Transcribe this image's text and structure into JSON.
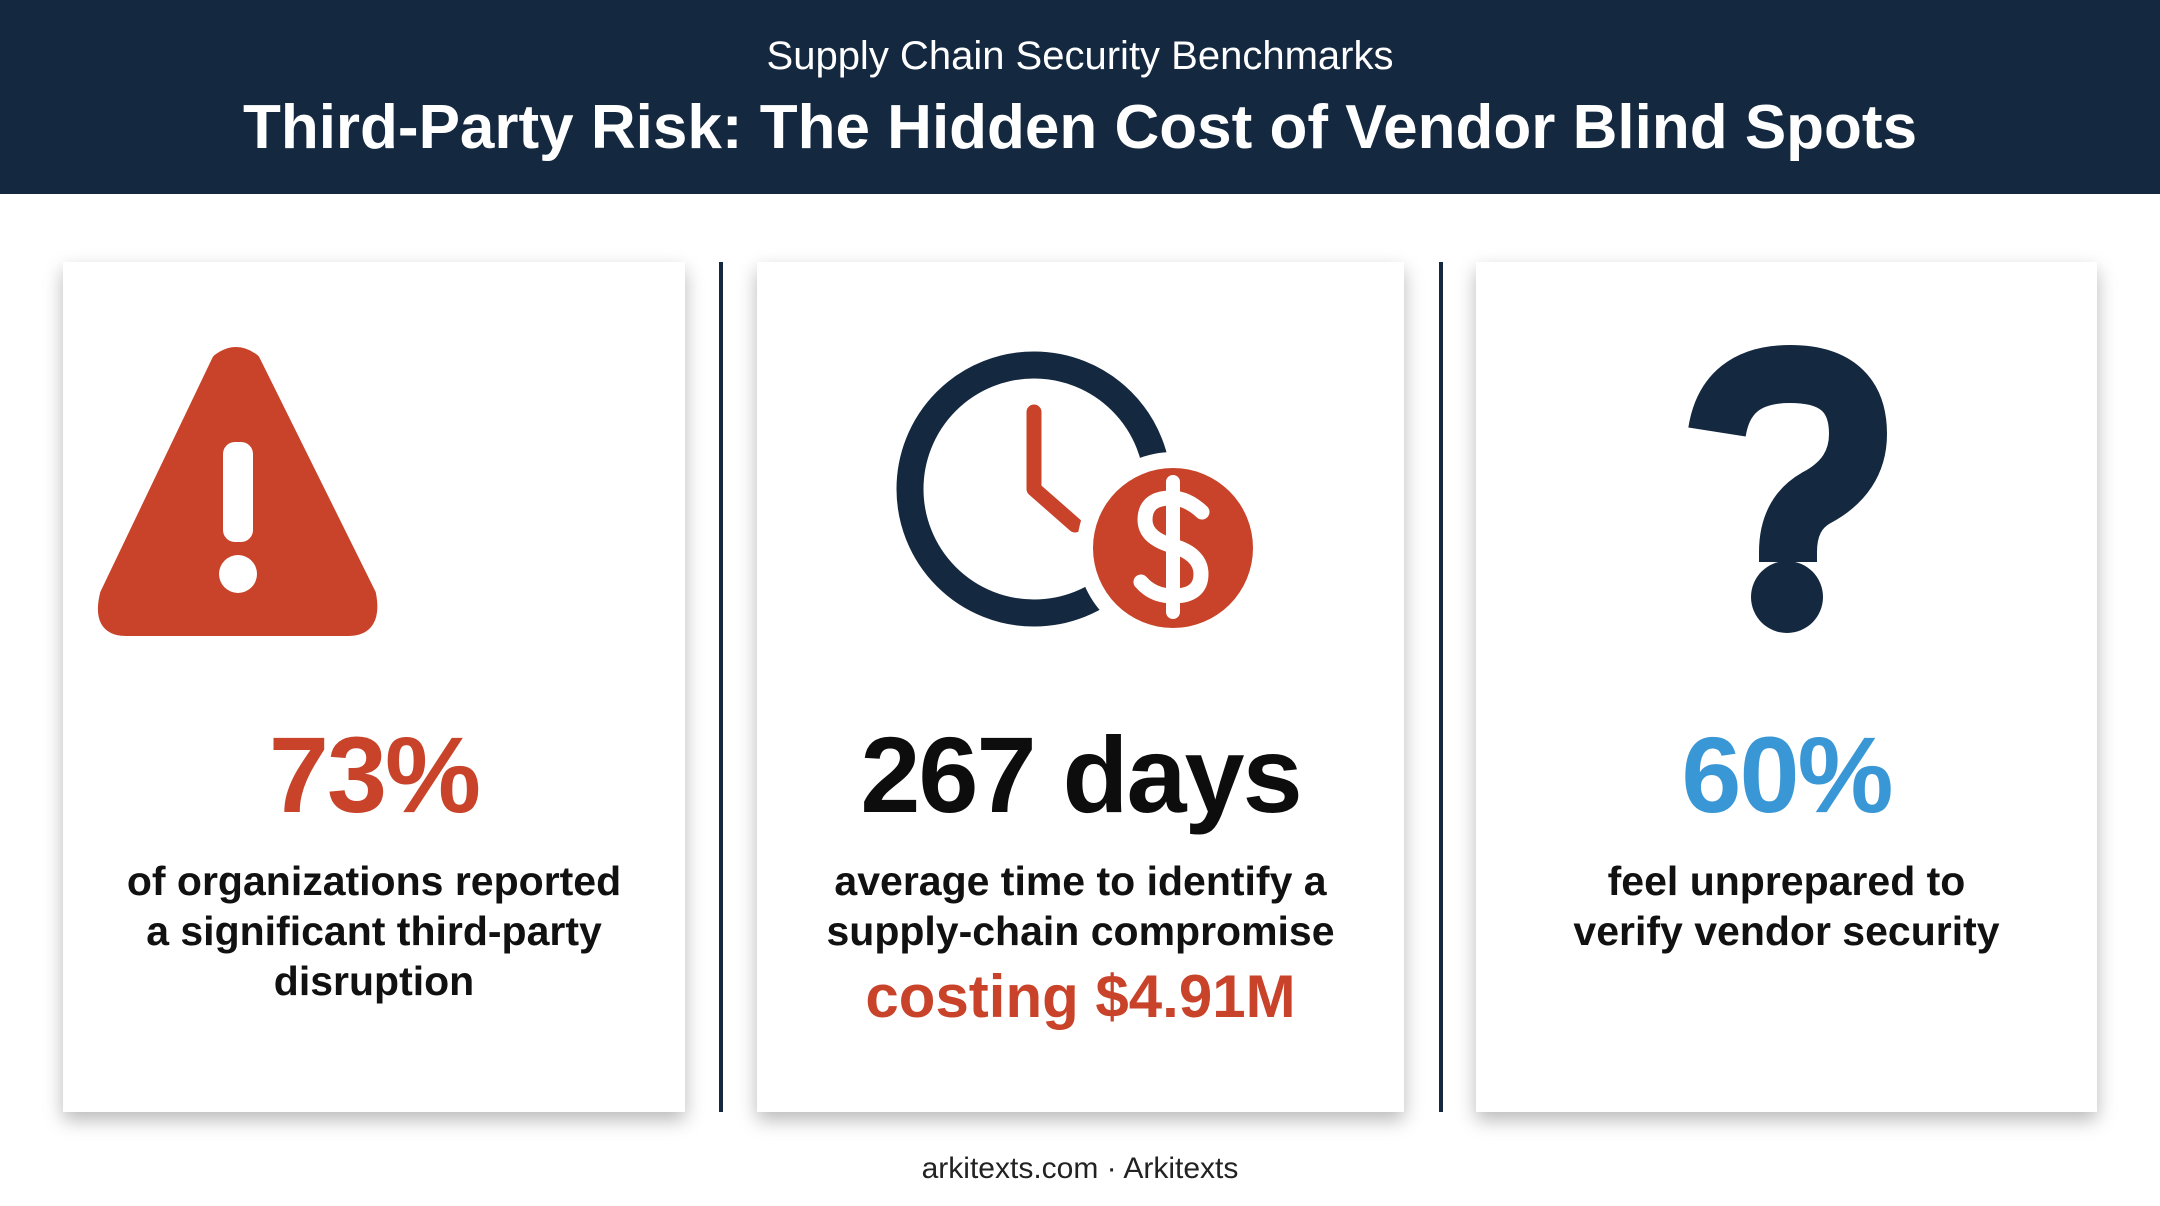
{
  "header": {
    "subtitle": "Supply Chain Security Benchmarks",
    "title": "Third-Party Risk: The Hidden Cost of Vendor Blind Spots"
  },
  "cards": [
    {
      "stat": "73%",
      "lines": [
        "of organizations reported",
        "a significant third-party",
        "disruption"
      ]
    },
    {
      "stat": "267 days",
      "lines": [
        "average time to identify a",
        "supply-chain compromise"
      ],
      "highlight": "costing $4.91M"
    },
    {
      "stat": "60%",
      "lines": [
        "feel unprepared to",
        "verify vendor security"
      ]
    }
  ],
  "footer": "arkitexts.com · Arkitexts"
}
